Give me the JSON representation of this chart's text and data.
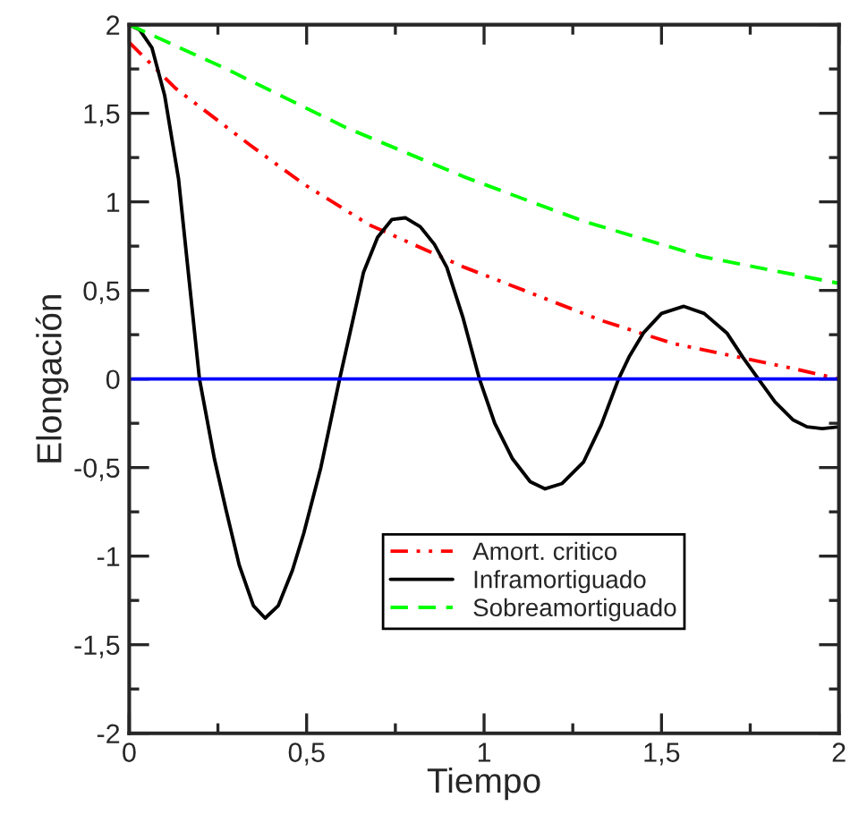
{
  "chart_data": {
    "type": "line",
    "xlabel": "Tiempo",
    "ylabel": "Elongación",
    "xlim": [
      0,
      2
    ],
    "ylim": [
      -2,
      2
    ],
    "xticks": [
      0,
      {
        "value": 0.5,
        "label": "0,5"
      },
      1,
      {
        "value": 1.5,
        "label": "1,5"
      },
      2
    ],
    "yticks": [
      -2,
      {
        "value": -1.5,
        "label": "-1,5"
      },
      -1,
      {
        "value": -0.5,
        "label": "-0,5"
      },
      0,
      {
        "value": 0.5,
        "label": "0,5"
      },
      1,
      {
        "value": 1.5,
        "label": "1,5"
      },
      2
    ],
    "grid": false,
    "legend": "bottom",
    "marker": "none",
    "series": [
      {
        "name": "Amort. critico",
        "color": "#ff0000",
        "line_style": "dashdot",
        "x": [
          0,
          0.131,
          0.341,
          0.492,
          0.677,
          0.778,
          0.945,
          1.113,
          1.331,
          1.533,
          1.701,
          1.869,
          2
        ],
        "values": [
          1.9,
          1.64,
          1.32,
          1.1,
          0.87,
          0.78,
          0.63,
          0.5,
          0.33,
          0.2,
          0.13,
          0.06,
          0.0
        ]
      },
      {
        "name": "Inframortiguado",
        "color": "#000000",
        "line_style": "solid",
        "x": [
          0,
          0.03,
          0.064,
          0.1,
          0.139,
          0.198,
          0.24,
          0.273,
          0.31,
          0.35,
          0.383,
          0.42,
          0.46,
          0.492,
          0.54,
          0.593,
          0.63,
          0.66,
          0.7,
          0.74,
          0.778,
          0.82,
          0.86,
          0.895,
          0.94,
          0.987,
          1.03,
          1.08,
          1.13,
          1.172,
          1.22,
          1.28,
          1.33,
          1.379,
          1.41,
          1.449,
          1.5,
          1.563,
          1.62,
          1.684,
          1.73,
          1.773,
          1.82,
          1.87,
          1.91,
          1.953,
          2
        ],
        "values": [
          2,
          1.97,
          1.87,
          1.6,
          1.13,
          0.0,
          -0.45,
          -0.74,
          -1.05,
          -1.28,
          -1.35,
          -1.28,
          -1.08,
          -0.87,
          -0.5,
          0.0,
          0.33,
          0.6,
          0.8,
          0.9,
          0.91,
          0.86,
          0.76,
          0.63,
          0.35,
          0.0,
          -0.25,
          -0.45,
          -0.58,
          -0.62,
          -0.59,
          -0.47,
          -0.26,
          0.0,
          0.13,
          0.26,
          0.37,
          0.41,
          0.37,
          0.26,
          0.12,
          0.0,
          -0.13,
          -0.23,
          -0.27,
          -0.28,
          -0.27
        ]
      },
      {
        "name": "Sobreamortiguado",
        "color": "#00ff00",
        "line_style": "dashed",
        "x": [
          0,
          0.274,
          0.61,
          0.945,
          1.281,
          1.617,
          2
        ],
        "values": [
          2,
          1.75,
          1.42,
          1.14,
          0.89,
          0.69,
          0.54
        ]
      },
      {
        "color": "#0000ff",
        "line_style": "solid",
        "x": [
          0,
          2
        ],
        "values": [
          0,
          0
        ]
      }
    ]
  }
}
